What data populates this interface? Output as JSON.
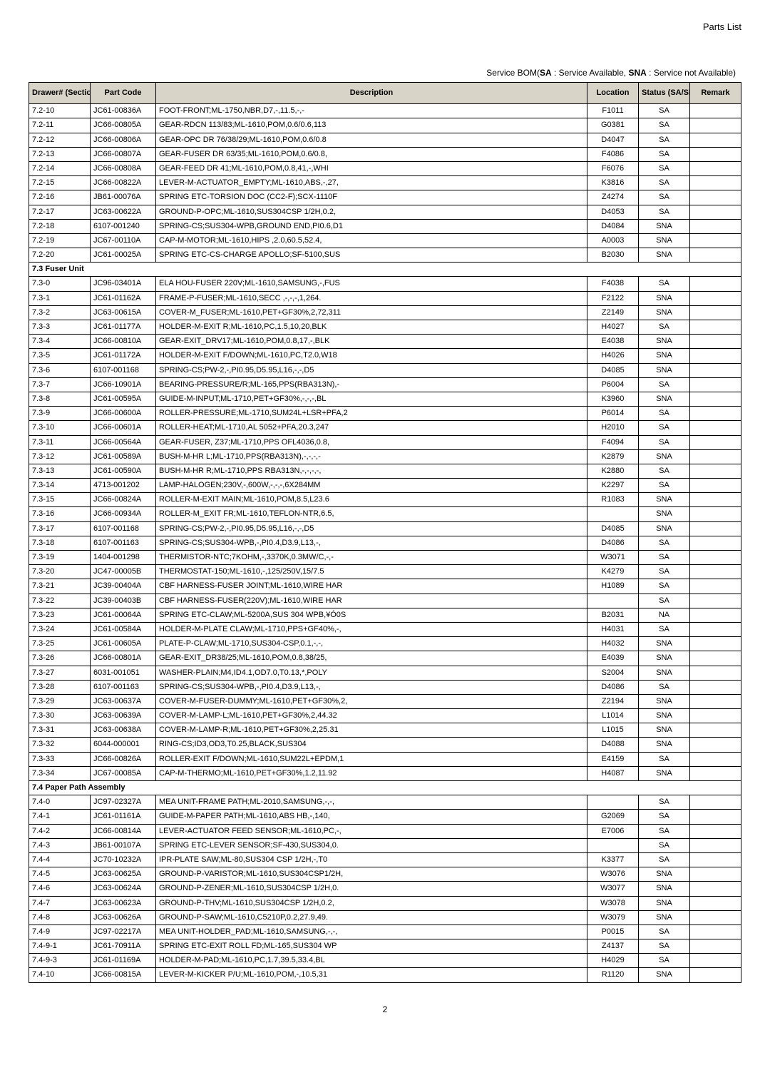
{
  "header": {
    "title": "Parts List"
  },
  "legend": {
    "prefix": "Service BOM(",
    "sa_key": "SA",
    "sa_text": " : Service Available, ",
    "sna_key": "SNA",
    "sna_text": " : Service not Available)"
  },
  "columns": {
    "drawer": "Drawer#\n(Section-No)",
    "part": "Part Code",
    "desc": "Description",
    "location": "Location",
    "status": "Status\n(SA/SNA)",
    "remark": "Remark"
  },
  "rows": [
    {
      "d": "7.2-10",
      "p": "JC61-00836A",
      "desc": "FOOT-FRONT;ML-1750,NBR,D7,-,11.5,-,-",
      "loc": "F1011",
      "st": "SA",
      "r": ""
    },
    {
      "d": "7.2-11",
      "p": "JC66-00805A",
      "desc": "GEAR-RDCN 113/83;ML-1610,POM,0.6/0.6,113",
      "loc": "G0381",
      "st": "SA",
      "r": ""
    },
    {
      "d": "7.2-12",
      "p": "JC66-00806A",
      "desc": "GEAR-OPC DR 76/38/29;ML-1610,POM,0.6/0.8",
      "loc": "D4047",
      "st": "SA",
      "r": ""
    },
    {
      "d": "7.2-13",
      "p": "JC66-00807A",
      "desc": "GEAR-FUSER DR 63/35;ML-1610,POM,0.6/0.8,",
      "loc": "F4086",
      "st": "SA",
      "r": ""
    },
    {
      "d": "7.2-14",
      "p": "JC66-00808A",
      "desc": "GEAR-FEED DR 41;ML-1610,POM,0.8,41,-,WHI",
      "loc": "F6076",
      "st": "SA",
      "r": ""
    },
    {
      "d": "7.2-15",
      "p": "JC66-00822A",
      "desc": "LEVER-M-ACTUATOR_EMPTY;ML-1610,ABS,-,27,",
      "loc": "K3816",
      "st": "SA",
      "r": ""
    },
    {
      "d": "7.2-16",
      "p": "JB61-00076A",
      "desc": "SPRING ETC-TORSION DOC (CC2-F);SCX-1110F",
      "loc": "Z4274",
      "st": "SA",
      "r": ""
    },
    {
      "d": "7.2-17",
      "p": "JC63-00622A",
      "desc": "GROUND-P-OPC;ML-1610,SUS304CSP 1/2H,0.2,",
      "loc": "D4053",
      "st": "SA",
      "r": ""
    },
    {
      "d": "7.2-18",
      "p": "6107-001240",
      "desc": "SPRING-CS;SUS304-WPB,GROUND END,PI0.6,D1",
      "loc": "D4084",
      "st": "SNA",
      "r": ""
    },
    {
      "d": "7.2-19",
      "p": "JC67-00110A",
      "desc": "CAP-M-MOTOR;ML-1610,HIPS ,2.0,60.5,52.4,",
      "loc": "A0003",
      "st": "SNA",
      "r": ""
    },
    {
      "d": "7.2-20",
      "p": "JC61-00025A",
      "desc": "SPRING ETC-CS-CHARGE APOLLO;SF-5100,SUS",
      "loc": "B2030",
      "st": "SNA",
      "r": ""
    },
    {
      "section": "7.3 Fuser Unit"
    },
    {
      "d": "7.3-0",
      "p": "JC96-03401A",
      "desc": "ELA HOU-FUSER 220V;ML-1610,SAMSUNG,-,FUS",
      "loc": "F4038",
      "st": "SA",
      "r": ""
    },
    {
      "d": "7.3-1",
      "p": "JC61-01162A",
      "desc": "FRAME-P-FUSER;ML-1610,SECC ,-,-,-,1,264.",
      "loc": "F2122",
      "st": "SNA",
      "r": ""
    },
    {
      "d": "7.3-2",
      "p": "JC63-00615A",
      "desc": "COVER-M_FUSER;ML-1610,PET+GF30%,2,72,311",
      "loc": "Z2149",
      "st": "SNA",
      "r": ""
    },
    {
      "d": "7.3-3",
      "p": "JC61-01177A",
      "desc": "HOLDER-M-EXIT R;ML-1610,PC,1.5,10,20,BLK",
      "loc": "H4027",
      "st": "SA",
      "r": ""
    },
    {
      "d": "7.3-4",
      "p": "JC66-00810A",
      "desc": "GEAR-EXIT_DRV17;ML-1610,POM,0.8,17,-,BLK",
      "loc": "E4038",
      "st": "SNA",
      "r": ""
    },
    {
      "d": "7.3-5",
      "p": "JC61-01172A",
      "desc": "HOLDER-M-EXIT F/DOWN;ML-1610,PC,T2.0,W18",
      "loc": "H4026",
      "st": "SNA",
      "r": ""
    },
    {
      "d": "7.3-6",
      "p": "6107-001168",
      "desc": "SPRING-CS;PW-2,-,PI0.95,D5.95,L16,-,-,D5",
      "loc": "D4085",
      "st": "SNA",
      "r": ""
    },
    {
      "d": "7.3-7",
      "p": "JC66-10901A",
      "desc": "BEARING-PRESSURE/R;ML-165,PPS(RBA313N),-",
      "loc": "P6004",
      "st": "SA",
      "r": ""
    },
    {
      "d": "7.3-8",
      "p": "JC61-00595A",
      "desc": "GUIDE-M-INPUT;ML-1710,PET+GF30%,-,-,-,BL",
      "loc": "K3960",
      "st": "SNA",
      "r": ""
    },
    {
      "d": "7.3-9",
      "p": "JC66-00600A",
      "desc": "ROLLER-PRESSURE;ML-1710,SUM24L+LSR+PFA,2",
      "loc": "P6014",
      "st": "SA",
      "r": ""
    },
    {
      "d": "7.3-10",
      "p": "JC66-00601A",
      "desc": "ROLLER-HEAT;ML-1710,AL 5052+PFA,20.3,247",
      "loc": "H2010",
      "st": "SA",
      "r": ""
    },
    {
      "d": "7.3-11",
      "p": "JC66-00564A",
      "desc": "GEAR-FUSER, Z37;ML-1710,PPS OFL4036,0.8,",
      "loc": "F4094",
      "st": "SA",
      "r": ""
    },
    {
      "d": "7.3-12",
      "p": "JC61-00589A",
      "desc": "BUSH-M-HR L;ML-1710,PPS(RBA313N),-,-,-,-",
      "loc": "K2879",
      "st": "SNA",
      "r": ""
    },
    {
      "d": "7.3-13",
      "p": "JC61-00590A",
      "desc": "BUSH-M-HR R;ML-1710,PPS RBA313N,-,-,-,-,",
      "loc": "K2880",
      "st": "SA",
      "r": ""
    },
    {
      "d": "7.3-14",
      "p": "4713-001202",
      "desc": "LAMP-HALOGEN;230V,-,600W,-,-,-,6X284MM",
      "loc": "K2297",
      "st": "SA",
      "r": ""
    },
    {
      "d": "7.3-15",
      "p": "JC66-00824A",
      "desc": "ROLLER-M-EXIT MAIN;ML-1610,POM,8.5,L23.6",
      "loc": "R1083",
      "st": "SNA",
      "r": ""
    },
    {
      "d": "7.3-16",
      "p": "JC66-00934A",
      "desc": "ROLLER-M_EXIT FR;ML-1610,TEFLON-NTR,6.5,",
      "loc": "",
      "st": "SNA",
      "r": ""
    },
    {
      "d": "7.3-17",
      "p": "6107-001168",
      "desc": "SPRING-CS;PW-2,-,PI0.95,D5.95,L16,-,-,D5",
      "loc": "D4085",
      "st": "SNA",
      "r": ""
    },
    {
      "d": "7.3-18",
      "p": "6107-001163",
      "desc": "SPRING-CS;SUS304-WPB,-,PI0.4,D3.9,L13,-,",
      "loc": "D4086",
      "st": "SA",
      "r": ""
    },
    {
      "d": "7.3-19",
      "p": "1404-001298",
      "desc": "THERMISTOR-NTC;7KOHM,-,3370K,0.3MW/C,-,-",
      "loc": "W3071",
      "st": "SA",
      "r": ""
    },
    {
      "d": "7.3-20",
      "p": "JC47-00005B",
      "desc": "THERMOSTAT-150;ML-1610,-,125/250V,15/7.5",
      "loc": "K4279",
      "st": "SA",
      "r": ""
    },
    {
      "d": "7.3-21",
      "p": "JC39-00404A",
      "desc": "CBF HARNESS-FUSER JOINT;ML-1610,WIRE HAR",
      "loc": "H1089",
      "st": "SA",
      "r": ""
    },
    {
      "d": "7.3-22",
      "p": "JC39-00403B",
      "desc": "CBF HARNESS-FUSER(220V);ML-1610,WIRE HAR",
      "loc": "",
      "st": "SA",
      "r": ""
    },
    {
      "d": "7.3-23",
      "p": "JC61-00064A",
      "desc": "SPRING ETC-CLAW;ML-5200A,SUS 304 WPB,¥Ó0S",
      "loc": "B2031",
      "st": "NA",
      "r": ""
    },
    {
      "d": "7.3-24",
      "p": "JC61-00584A",
      "desc": "HOLDER-M-PLATE CLAW;ML-1710,PPS+GF40%,-,",
      "loc": "H4031",
      "st": "SA",
      "r": ""
    },
    {
      "d": "7.3-25",
      "p": "JC61-00605A",
      "desc": "PLATE-P-CLAW;ML-1710,SUS304-CSP,0.1,-,-,",
      "loc": "H4032",
      "st": "SNA",
      "r": ""
    },
    {
      "d": "7.3-26",
      "p": "JC66-00801A",
      "desc": "GEAR-EXIT_DR38/25;ML-1610,POM,0.8,38/25,",
      "loc": "E4039",
      "st": "SNA",
      "r": ""
    },
    {
      "d": "7.3-27",
      "p": "6031-001051",
      "desc": "WASHER-PLAIN;M4,ID4.1,OD7.0,T0.13,*,POLY",
      "loc": "S2004",
      "st": "SNA",
      "r": ""
    },
    {
      "d": "7.3-28",
      "p": "6107-001163",
      "desc": "SPRING-CS;SUS304-WPB,-,PI0.4,D3.9,L13,-,",
      "loc": "D4086",
      "st": "SA",
      "r": ""
    },
    {
      "d": "7.3-29",
      "p": "JC63-00637A",
      "desc": "COVER-M-FUSER-DUMMY;ML-1610,PET+GF30%,2,",
      "loc": "Z2194",
      "st": "SNA",
      "r": ""
    },
    {
      "d": "7.3-30",
      "p": "JC63-00639A",
      "desc": "COVER-M-LAMP-L;ML-1610,PET+GF30%,2,44.32",
      "loc": "L1014",
      "st": "SNA",
      "r": ""
    },
    {
      "d": "7.3-31",
      "p": "JC63-00638A",
      "desc": "COVER-M-LAMP-R;ML-1610,PET+GF30%,2,25.31",
      "loc": "L1015",
      "st": "SNA",
      "r": ""
    },
    {
      "d": "7.3-32",
      "p": "6044-000001",
      "desc": "RING-CS;ID3,OD3,T0.25,BLACK,SUS304",
      "loc": "D4088",
      "st": "SNA",
      "r": ""
    },
    {
      "d": "7.3-33",
      "p": "JC66-00826A",
      "desc": "ROLLER-EXIT F/DOWN;ML-1610,SUM22L+EPDM,1",
      "loc": "E4159",
      "st": "SA",
      "r": ""
    },
    {
      "d": "7.3-34",
      "p": "JC67-00085A",
      "desc": "CAP-M-THERMO;ML-1610,PET+GF30%,1.2,11.92",
      "loc": "H4087",
      "st": "SNA",
      "r": ""
    },
    {
      "section": "7.4 Paper Path Assembly"
    },
    {
      "d": "7.4-0",
      "p": "JC97-02327A",
      "desc": "MEA UNIT-FRAME PATH;ML-2010,SAMSUNG,-,-,",
      "loc": "",
      "st": "SA",
      "r": ""
    },
    {
      "d": "7.4-1",
      "p": "JC61-01161A",
      "desc": "GUIDE-M-PAPER PATH;ML-1610,ABS HB,-,140,",
      "loc": "G2069",
      "st": "SA",
      "r": ""
    },
    {
      "d": "7.4-2",
      "p": "JC66-00814A",
      "desc": "LEVER-ACTUATOR FEED SENSOR;ML-1610,PC,-,",
      "loc": "E7006",
      "st": "SA",
      "r": ""
    },
    {
      "d": "7.4-3",
      "p": "JB61-00107A",
      "desc": "SPRING ETC-LEVER SENSOR;SF-430,SUS304,0.",
      "loc": "",
      "st": "SA",
      "r": ""
    },
    {
      "d": "7.4-4",
      "p": "JC70-10232A",
      "desc": "IPR-PLATE SAW;ML-80,SUS304 CSP 1/2H,-,T0",
      "loc": "K3377",
      "st": "SA",
      "r": ""
    },
    {
      "d": "7.4-5",
      "p": "JC63-00625A",
      "desc": "GROUND-P-VARISTOR;ML-1610,SUS304CSP1/2H,",
      "loc": "W3076",
      "st": "SNA",
      "r": ""
    },
    {
      "d": "7.4-6",
      "p": "JC63-00624A",
      "desc": "GROUND-P-ZENER;ML-1610,SUS304CSP 1/2H,0.",
      "loc": "W3077",
      "st": "SNA",
      "r": ""
    },
    {
      "d": "7.4-7",
      "p": "JC63-00623A",
      "desc": "GROUND-P-THV;ML-1610,SUS304CSP 1/2H,0.2,",
      "loc": "W3078",
      "st": "SNA",
      "r": ""
    },
    {
      "d": "7.4-8",
      "p": "JC63-00626A",
      "desc": "GROUND-P-SAW;ML-1610,C5210P,0.2,27.9,49.",
      "loc": "W3079",
      "st": "SNA",
      "r": ""
    },
    {
      "d": "7.4-9",
      "p": "JC97-02217A",
      "desc": "MEA UNIT-HOLDER_PAD;ML-1610,SAMSUNG,-,-,",
      "loc": "P0015",
      "st": "SA",
      "r": ""
    },
    {
      "d": "7.4-9-1",
      "p": "JC61-70911A",
      "desc": "SPRING ETC-EXIT ROLL FD;ML-165,SUS304 WP",
      "loc": "Z4137",
      "st": "SA",
      "r": ""
    },
    {
      "d": "7.4-9-3",
      "p": "JC61-01169A",
      "desc": "HOLDER-M-PAD;ML-1610,PC,1.7,39.5,33.4,BL",
      "loc": "H4029",
      "st": "SA",
      "r": ""
    },
    {
      "d": "7.4-10",
      "p": "JC66-00815A",
      "desc": "LEVER-M-KICKER P/U;ML-1610,POM,-,10.5,31",
      "loc": "R1120",
      "st": "SNA",
      "r": ""
    }
  ],
  "footer": {
    "page_number": "2"
  }
}
